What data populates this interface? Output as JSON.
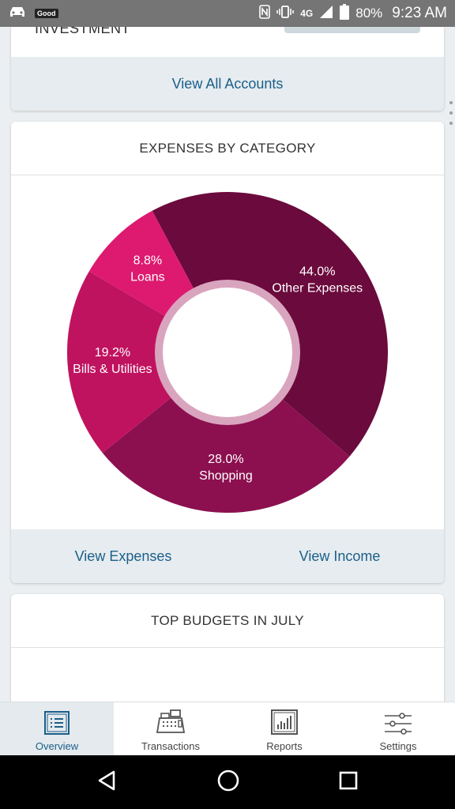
{
  "status_bar": {
    "badge": "Good",
    "network": "4G",
    "battery": "80%",
    "time": "9:23 AM"
  },
  "accounts_card": {
    "section_label": "INVESTMENT",
    "footer_link": "View All Accounts"
  },
  "expenses_card": {
    "title": "EXPENSES BY CATEGORY",
    "view_expenses": "View Expenses",
    "view_income": "View Income"
  },
  "chart_data": {
    "type": "pie",
    "categories": [
      "Other Expenses",
      "Shopping",
      "Bills & Utilities",
      "Loans"
    ],
    "values": [
      44.0,
      28.0,
      19.2,
      8.8
    ],
    "labels": [
      "44.0%",
      "28.0%",
      "19.2%",
      "8.8%"
    ],
    "colors": [
      "#6b0a3c",
      "#8c1050",
      "#c0135f",
      "#dd1a70"
    ],
    "title": "EXPENSES BY CATEGORY",
    "legend": "none"
  },
  "budgets_card": {
    "title": "TOP BUDGETS IN JULY"
  },
  "bottom_nav": {
    "items": [
      {
        "label": "Overview",
        "icon": "overview-list-icon",
        "active": true
      },
      {
        "label": "Transactions",
        "icon": "cash-register-icon",
        "active": false
      },
      {
        "label": "Reports",
        "icon": "bar-chart-icon",
        "active": false
      },
      {
        "label": "Settings",
        "icon": "sliders-icon",
        "active": false
      }
    ]
  },
  "system_nav": {
    "icons": [
      "back-triangle-icon",
      "home-circle-icon",
      "recents-square-icon"
    ]
  }
}
